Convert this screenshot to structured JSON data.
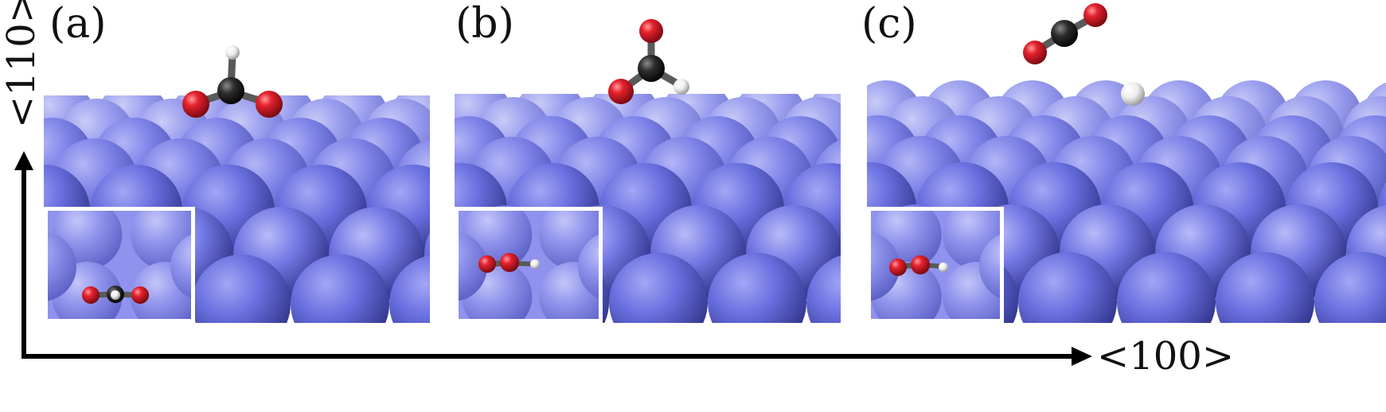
{
  "figure": {
    "panels": [
      {
        "label": "(a)",
        "molecule": "formate-bidentate"
      },
      {
        "label": "(b)",
        "molecule": "formate-monodentate"
      },
      {
        "label": "(c)",
        "molecule": "co2-plus-adsorbed-h"
      }
    ],
    "axes": {
      "vertical_label": "<110>",
      "horizontal_label": "<100>"
    },
    "colors": {
      "surface_atom": "#6f74e6",
      "surface_atom_dark": "#3d41a8",
      "oxygen": "#e0202c",
      "carbon": "#2a2a2a",
      "hydrogen": "#f2f2f2",
      "axis": "#000000"
    }
  }
}
